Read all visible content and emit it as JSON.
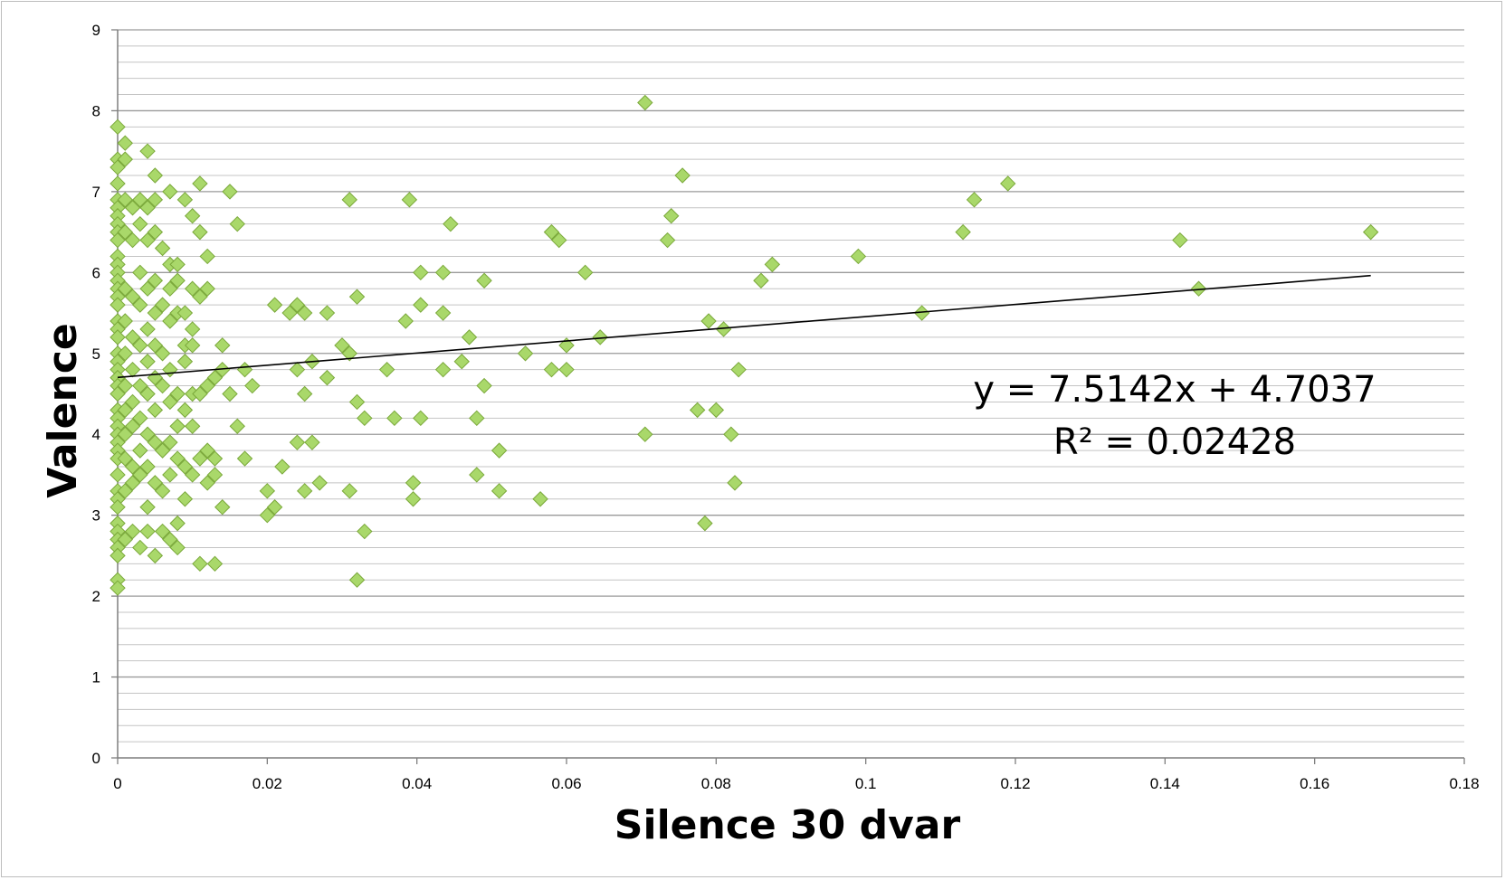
{
  "chart_data": {
    "type": "scatter",
    "title": "",
    "xlabel": "Silence 30 dvar",
    "ylabel": "Valence",
    "xlim": [
      0,
      0.18
    ],
    "ylim": [
      0,
      9
    ],
    "x_ticks": [
      0,
      0.02,
      0.04,
      0.06,
      0.08,
      0.1,
      0.12,
      0.14,
      0.16,
      0.18
    ],
    "x_tick_labels": [
      "0",
      "0.02",
      "0.04",
      "0.06",
      "0.08",
      "0.1",
      "0.12",
      "0.14",
      "0.16",
      "0.18"
    ],
    "y_ticks": [
      0,
      1,
      2,
      3,
      4,
      5,
      6,
      7,
      8,
      9
    ],
    "y_tick_labels": [
      "0",
      "1",
      "2",
      "3",
      "4",
      "5",
      "6",
      "7",
      "8",
      "9"
    ],
    "grid": true,
    "minor_grid_step": 0.2,
    "marker": "diamond",
    "marker_color": "#a9d86a",
    "marker_edge_color": "#7aa83a",
    "legend": "none",
    "trendline": {
      "type": "linear",
      "slope": 7.5142,
      "intercept": 4.7037,
      "x_range": [
        0,
        0.1675
      ],
      "equation_label": "y = 7.5142x + 4.7037",
      "r2_label": "R² = 0.02428"
    },
    "series": [
      {
        "points": [
          [
            0,
            7.8
          ],
          [
            0,
            7.4
          ],
          [
            0,
            7.3
          ],
          [
            0,
            7.1
          ],
          [
            0,
            6.9
          ],
          [
            0,
            6.8
          ],
          [
            0,
            6.7
          ],
          [
            0,
            6.6
          ],
          [
            0,
            6.5
          ],
          [
            0,
            6.4
          ],
          [
            0,
            6.2
          ],
          [
            0,
            6.1
          ],
          [
            0,
            6.0
          ],
          [
            0,
            5.9
          ],
          [
            0,
            5.8
          ],
          [
            0,
            5.7
          ],
          [
            0,
            5.6
          ],
          [
            0,
            5.4
          ],
          [
            0,
            5.3
          ],
          [
            0,
            5.2
          ],
          [
            0,
            5.0
          ],
          [
            0,
            4.9
          ],
          [
            0,
            4.8
          ],
          [
            0,
            4.7
          ],
          [
            0,
            4.6
          ],
          [
            0,
            4.5
          ],
          [
            0,
            4.3
          ],
          [
            0,
            4.2
          ],
          [
            0,
            4.1
          ],
          [
            0,
            4.0
          ],
          [
            0,
            3.9
          ],
          [
            0,
            3.8
          ],
          [
            0,
            3.7
          ],
          [
            0,
            3.5
          ],
          [
            0,
            3.3
          ],
          [
            0,
            3.2
          ],
          [
            0,
            3.1
          ],
          [
            0,
            2.9
          ],
          [
            0,
            2.8
          ],
          [
            0,
            2.7
          ],
          [
            0,
            2.6
          ],
          [
            0,
            2.5
          ],
          [
            0,
            2.2
          ],
          [
            0,
            2.1
          ],
          [
            0.001,
            7.6
          ],
          [
            0.001,
            7.4
          ],
          [
            0.001,
            6.9
          ],
          [
            0.001,
            6.5
          ],
          [
            0.001,
            5.8
          ],
          [
            0.001,
            5.4
          ],
          [
            0.001,
            5.0
          ],
          [
            0.001,
            4.6
          ],
          [
            0.001,
            4.3
          ],
          [
            0.001,
            4.0
          ],
          [
            0.001,
            3.7
          ],
          [
            0.001,
            3.3
          ],
          [
            0.001,
            2.7
          ],
          [
            0.002,
            6.8
          ],
          [
            0.002,
            6.4
          ],
          [
            0.002,
            5.7
          ],
          [
            0.002,
            5.2
          ],
          [
            0.002,
            4.8
          ],
          [
            0.002,
            4.4
          ],
          [
            0.002,
            4.1
          ],
          [
            0.002,
            3.6
          ],
          [
            0.002,
            3.4
          ],
          [
            0.002,
            2.8
          ],
          [
            0.003,
            6.9
          ],
          [
            0.003,
            6.6
          ],
          [
            0.003,
            6.0
          ],
          [
            0.003,
            5.6
          ],
          [
            0.003,
            5.1
          ],
          [
            0.003,
            4.6
          ],
          [
            0.003,
            4.2
          ],
          [
            0.003,
            3.8
          ],
          [
            0.003,
            3.5
          ],
          [
            0.003,
            2.6
          ],
          [
            0.004,
            7.5
          ],
          [
            0.004,
            6.8
          ],
          [
            0.004,
            6.4
          ],
          [
            0.004,
            5.8
          ],
          [
            0.004,
            5.3
          ],
          [
            0.004,
            4.9
          ],
          [
            0.004,
            4.5
          ],
          [
            0.004,
            4.0
          ],
          [
            0.004,
            3.6
          ],
          [
            0.004,
            3.1
          ],
          [
            0.004,
            2.8
          ],
          [
            0.005,
            7.2
          ],
          [
            0.005,
            6.9
          ],
          [
            0.005,
            6.5
          ],
          [
            0.005,
            5.9
          ],
          [
            0.005,
            5.5
          ],
          [
            0.005,
            5.1
          ],
          [
            0.005,
            4.7
          ],
          [
            0.005,
            4.3
          ],
          [
            0.005,
            3.9
          ],
          [
            0.005,
            3.4
          ],
          [
            0.005,
            2.5
          ],
          [
            0.006,
            6.3
          ],
          [
            0.006,
            5.6
          ],
          [
            0.006,
            5.0
          ],
          [
            0.006,
            4.6
          ],
          [
            0.006,
            3.8
          ],
          [
            0.006,
            3.3
          ],
          [
            0.006,
            2.8
          ],
          [
            0.007,
            7.0
          ],
          [
            0.007,
            6.1
          ],
          [
            0.007,
            5.8
          ],
          [
            0.007,
            5.4
          ],
          [
            0.007,
            4.8
          ],
          [
            0.007,
            4.4
          ],
          [
            0.007,
            3.9
          ],
          [
            0.007,
            3.5
          ],
          [
            0.007,
            2.7
          ],
          [
            0.008,
            6.1
          ],
          [
            0.008,
            5.9
          ],
          [
            0.008,
            5.5
          ],
          [
            0.008,
            4.5
          ],
          [
            0.008,
            4.1
          ],
          [
            0.008,
            3.7
          ],
          [
            0.008,
            2.9
          ],
          [
            0.008,
            2.6
          ],
          [
            0.009,
            6.9
          ],
          [
            0.009,
            5.5
          ],
          [
            0.009,
            5.1
          ],
          [
            0.009,
            4.9
          ],
          [
            0.009,
            4.3
          ],
          [
            0.009,
            3.6
          ],
          [
            0.009,
            3.2
          ],
          [
            0.01,
            6.7
          ],
          [
            0.01,
            5.8
          ],
          [
            0.01,
            5.3
          ],
          [
            0.01,
            5.1
          ],
          [
            0.01,
            4.5
          ],
          [
            0.01,
            4.1
          ],
          [
            0.01,
            3.5
          ],
          [
            0.011,
            7.1
          ],
          [
            0.011,
            6.5
          ],
          [
            0.011,
            5.7
          ],
          [
            0.011,
            4.5
          ],
          [
            0.011,
            3.7
          ],
          [
            0.011,
            2.4
          ],
          [
            0.012,
            6.2
          ],
          [
            0.012,
            5.8
          ],
          [
            0.012,
            4.6
          ],
          [
            0.012,
            3.8
          ],
          [
            0.012,
            3.4
          ],
          [
            0.013,
            4.7
          ],
          [
            0.013,
            3.7
          ],
          [
            0.013,
            3.5
          ],
          [
            0.013,
            2.4
          ],
          [
            0.014,
            5.1
          ],
          [
            0.014,
            4.8
          ],
          [
            0.014,
            3.1
          ],
          [
            0.015,
            7.0
          ],
          [
            0.015,
            4.5
          ],
          [
            0.016,
            6.6
          ],
          [
            0.016,
            4.1
          ],
          [
            0.017,
            4.8
          ],
          [
            0.017,
            3.7
          ],
          [
            0.018,
            4.6
          ],
          [
            0.02,
            3.3
          ],
          [
            0.02,
            3.0
          ],
          [
            0.021,
            5.6
          ],
          [
            0.021,
            3.1
          ],
          [
            0.022,
            3.6
          ],
          [
            0.023,
            5.5
          ],
          [
            0.024,
            5.6
          ],
          [
            0.024,
            4.8
          ],
          [
            0.024,
            3.9
          ],
          [
            0.025,
            5.5
          ],
          [
            0.025,
            4.5
          ],
          [
            0.025,
            3.3
          ],
          [
            0.026,
            4.9
          ],
          [
            0.026,
            3.9
          ],
          [
            0.027,
            3.4
          ],
          [
            0.028,
            5.5
          ],
          [
            0.028,
            4.7
          ],
          [
            0.03,
            5.1
          ],
          [
            0.031,
            6.9
          ],
          [
            0.031,
            5.0
          ],
          [
            0.031,
            3.3
          ],
          [
            0.032,
            5.7
          ],
          [
            0.032,
            4.4
          ],
          [
            0.032,
            2.2
          ],
          [
            0.033,
            4.2
          ],
          [
            0.033,
            2.8
          ],
          [
            0.036,
            4.8
          ],
          [
            0.037,
            4.2
          ],
          [
            0.0385,
            5.4
          ],
          [
            0.039,
            6.9
          ],
          [
            0.0395,
            3.4
          ],
          [
            0.0395,
            3.2
          ],
          [
            0.0405,
            6.0
          ],
          [
            0.0405,
            5.6
          ],
          [
            0.0405,
            4.2
          ],
          [
            0.0435,
            6.0
          ],
          [
            0.0435,
            5.5
          ],
          [
            0.0435,
            4.8
          ],
          [
            0.0445,
            6.6
          ],
          [
            0.046,
            4.9
          ],
          [
            0.047,
            5.2
          ],
          [
            0.048,
            4.2
          ],
          [
            0.048,
            3.5
          ],
          [
            0.049,
            5.9
          ],
          [
            0.049,
            4.6
          ],
          [
            0.051,
            3.8
          ],
          [
            0.051,
            3.3
          ],
          [
            0.0545,
            5.0
          ],
          [
            0.0565,
            3.2
          ],
          [
            0.058,
            6.5
          ],
          [
            0.058,
            4.8
          ],
          [
            0.059,
            6.4
          ],
          [
            0.06,
            5.1
          ],
          [
            0.06,
            4.8
          ],
          [
            0.0625,
            6.0
          ],
          [
            0.0645,
            5.2
          ],
          [
            0.0705,
            8.1
          ],
          [
            0.0705,
            4.0
          ],
          [
            0.0735,
            6.4
          ],
          [
            0.074,
            6.7
          ],
          [
            0.0755,
            7.2
          ],
          [
            0.0775,
            4.3
          ],
          [
            0.0785,
            2.9
          ],
          [
            0.079,
            5.4
          ],
          [
            0.08,
            4.3
          ],
          [
            0.081,
            5.3
          ],
          [
            0.082,
            4.0
          ],
          [
            0.0825,
            3.4
          ],
          [
            0.083,
            4.8
          ],
          [
            0.086,
            5.9
          ],
          [
            0.0875,
            6.1
          ],
          [
            0.099,
            6.2
          ],
          [
            0.1075,
            5.5
          ],
          [
            0.113,
            6.5
          ],
          [
            0.1145,
            6.9
          ],
          [
            0.119,
            7.1
          ],
          [
            0.142,
            6.4
          ],
          [
            0.1445,
            5.8
          ],
          [
            0.1675,
            6.5
          ]
        ]
      }
    ]
  }
}
